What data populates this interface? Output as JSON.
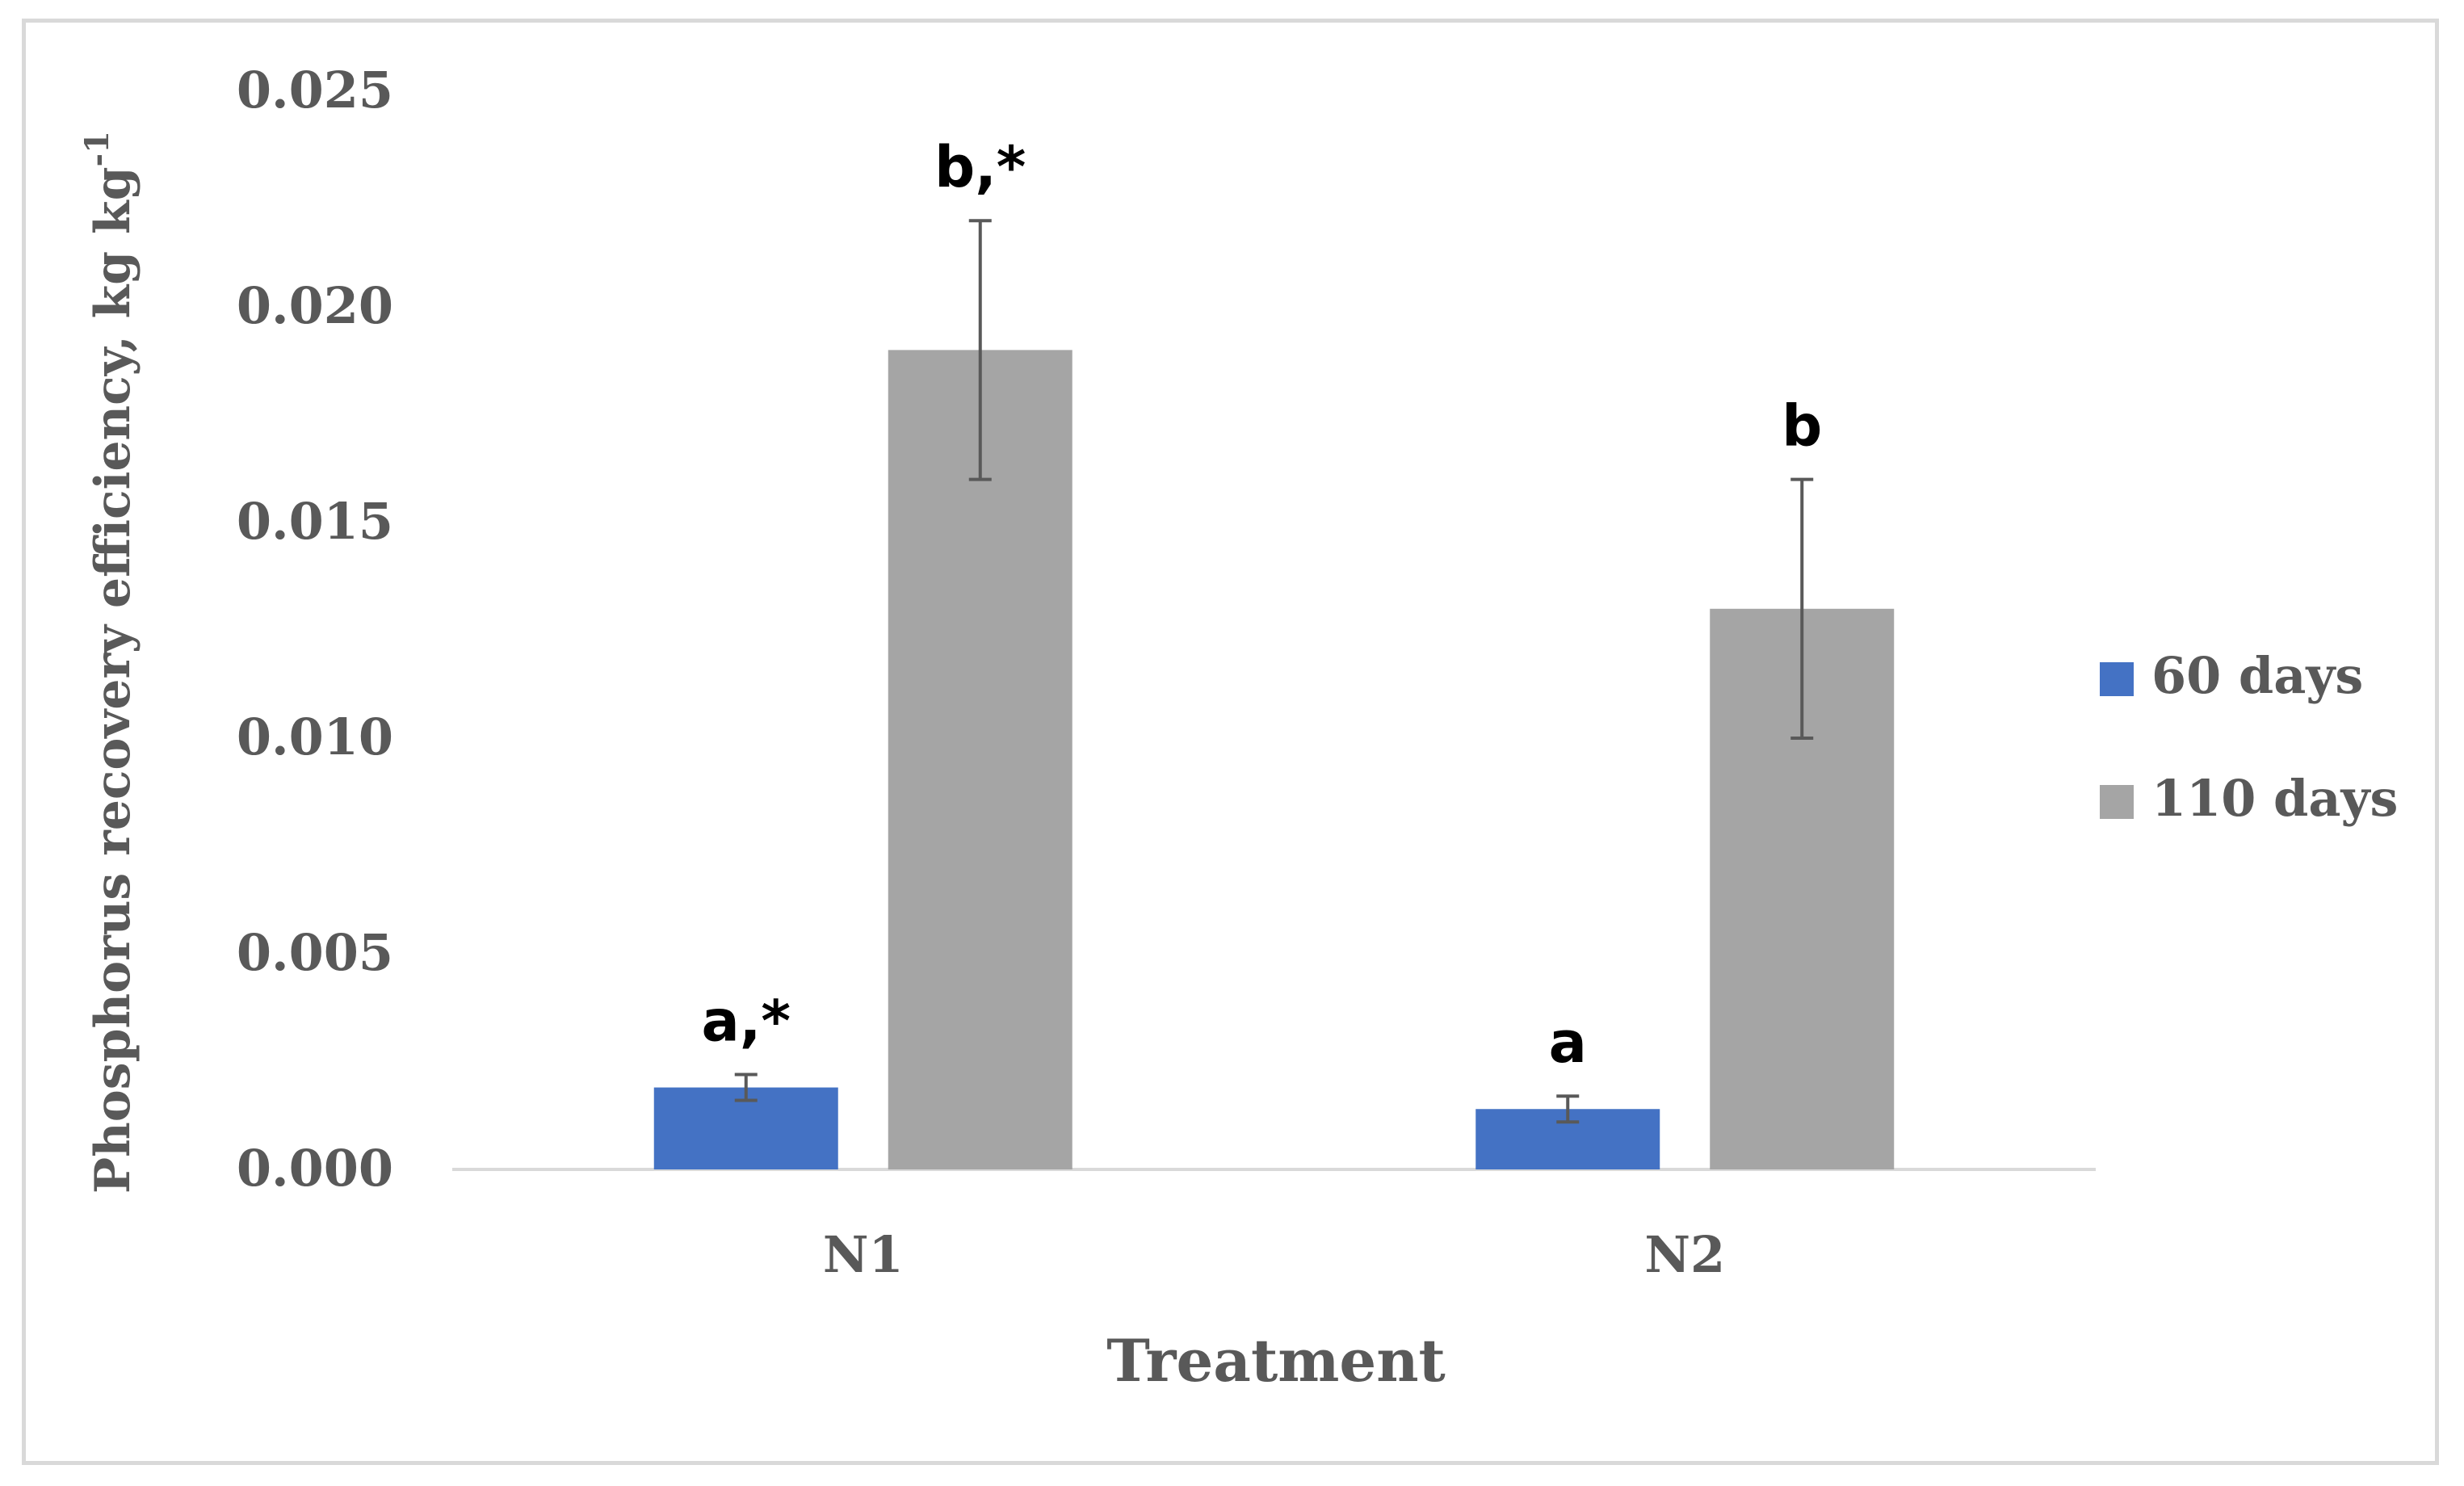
{
  "chart_data": {
    "type": "bar",
    "title": "",
    "xlabel": "Treatment",
    "ylabel": "Phosphorus recovery efficiency, kg kg",
    "ylabel_superscript": "-1",
    "categories": [
      "N1",
      "N2"
    ],
    "ylim": [
      0,
      0.025
    ],
    "yticks": [
      "0.000",
      "0.005",
      "0.010",
      "0.015",
      "0.020",
      "0.025"
    ],
    "ytick_values": [
      0,
      0.005,
      0.01,
      0.015,
      0.02,
      0.025
    ],
    "grid": false,
    "legend_position": "right",
    "series": [
      {
        "name": "60 days",
        "color": "#4472c4",
        "values": [
          0.0019,
          0.0014
        ],
        "errors": [
          0.0003,
          0.0003
        ],
        "annotations": [
          "a,*",
          "a"
        ]
      },
      {
        "name": "110 days",
        "color": "#a5a5a5",
        "values": [
          0.019,
          0.013
        ],
        "errors": [
          0.003,
          0.003
        ],
        "annotations": [
          "b,*",
          "b"
        ]
      }
    ]
  }
}
